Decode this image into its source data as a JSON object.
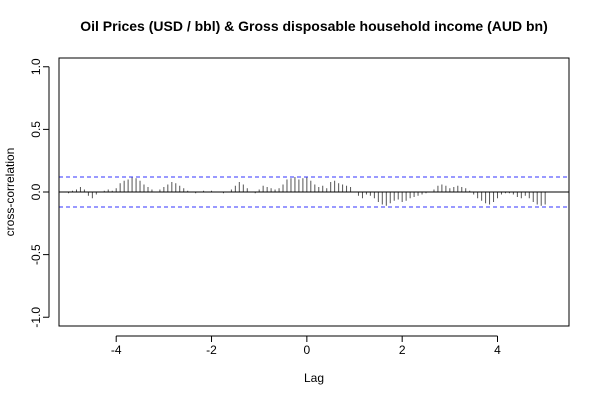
{
  "chart_data": {
    "type": "bar",
    "subtype": "cross-correlation",
    "title": "Oil Prices (USD / bbl) & Gross disposable household income (AUD bn)",
    "xlabel": "Lag",
    "ylabel": "cross-correlation",
    "xlim": [
      -5.2,
      5.5
    ],
    "ylim": [
      -1.07,
      1.07
    ],
    "x_ticks": [
      -4,
      -2,
      0,
      2,
      4
    ],
    "y_ticks": [
      -1.0,
      -0.5,
      0.0,
      0.5,
      1.0
    ],
    "x_tick_labels": [
      "-4",
      "-2",
      "0",
      "2",
      "4"
    ],
    "y_tick_labels": [
      "-1.0",
      "-0.5",
      "0.0",
      "0.5",
      "1.0"
    ],
    "confidence_bounds": [
      0.12,
      -0.12
    ],
    "grid": false,
    "colors": {
      "bars": "#555555",
      "zero_line": "#000000",
      "bounds": "#3333ff",
      "frame": "#000000"
    },
    "lags": [
      -5.0,
      -4.917,
      -4.833,
      -4.75,
      -4.667,
      -4.583,
      -4.5,
      -4.417,
      -4.333,
      -4.25,
      -4.167,
      -4.083,
      -4.0,
      -3.917,
      -3.833,
      -3.75,
      -3.667,
      -3.583,
      -3.5,
      -3.417,
      -3.333,
      -3.25,
      -3.167,
      -3.083,
      -3.0,
      -2.917,
      -2.833,
      -2.75,
      -2.667,
      -2.583,
      -2.5,
      -2.417,
      -2.333,
      -2.25,
      -2.167,
      -2.083,
      -2.0,
      -1.917,
      -1.833,
      -1.75,
      -1.667,
      -1.583,
      -1.5,
      -1.417,
      -1.333,
      -1.25,
      -1.167,
      -1.083,
      -1.0,
      -0.917,
      -0.833,
      -0.75,
      -0.667,
      -0.583,
      -0.5,
      -0.417,
      -0.333,
      -0.25,
      -0.167,
      -0.083,
      0.0,
      0.083,
      0.167,
      0.25,
      0.333,
      0.417,
      0.5,
      0.583,
      0.667,
      0.75,
      0.833,
      0.917,
      1.0,
      1.083,
      1.167,
      1.25,
      1.333,
      1.417,
      1.5,
      1.583,
      1.667,
      1.75,
      1.833,
      1.917,
      2.0,
      2.083,
      2.167,
      2.25,
      2.333,
      2.417,
      2.5,
      2.583,
      2.667,
      2.75,
      2.833,
      2.917,
      3.0,
      3.083,
      3.167,
      3.25,
      3.333,
      3.417,
      3.5,
      3.583,
      3.667,
      3.75,
      3.833,
      3.917,
      4.0,
      4.083,
      4.167,
      4.25,
      4.333,
      4.417,
      4.5,
      4.583,
      4.667,
      4.75,
      4.833,
      4.917,
      5.0
    ],
    "values": [
      -0.01,
      0.01,
      0.02,
      0.04,
      0.02,
      -0.03,
      -0.05,
      -0.02,
      0.0,
      0.01,
      0.02,
      0.01,
      0.03,
      0.07,
      0.09,
      0.1,
      0.12,
      0.11,
      0.09,
      0.06,
      0.04,
      0.02,
      0.0,
      0.02,
      0.04,
      0.06,
      0.08,
      0.07,
      0.05,
      0.03,
      0.01,
      0.0,
      -0.01,
      0.0,
      0.01,
      0.0,
      0.01,
      0.0,
      0.0,
      -0.01,
      0.0,
      0.02,
      0.05,
      0.08,
      0.06,
      0.03,
      0.0,
      -0.01,
      0.02,
      0.05,
      0.04,
      0.03,
      0.02,
      0.03,
      0.06,
      0.1,
      0.11,
      0.12,
      0.1,
      0.11,
      0.12,
      0.09,
      0.06,
      0.04,
      0.05,
      0.03,
      0.08,
      0.09,
      0.07,
      0.06,
      0.05,
      0.04,
      0.0,
      -0.03,
      -0.05,
      -0.02,
      -0.03,
      -0.05,
      -0.08,
      -0.1,
      -0.11,
      -0.09,
      -0.07,
      -0.06,
      -0.08,
      -0.07,
      -0.05,
      -0.04,
      -0.03,
      -0.02,
      -0.01,
      0.0,
      0.02,
      0.05,
      0.06,
      0.05,
      0.03,
      0.04,
      0.05,
      0.04,
      0.03,
      0.01,
      -0.02,
      -0.05,
      -0.07,
      -0.09,
      -0.1,
      -0.08,
      -0.05,
      -0.02,
      -0.01,
      -0.01,
      -0.02,
      -0.04,
      -0.05,
      -0.03,
      -0.05,
      -0.08,
      -0.1,
      -0.11,
      -0.1
    ]
  }
}
